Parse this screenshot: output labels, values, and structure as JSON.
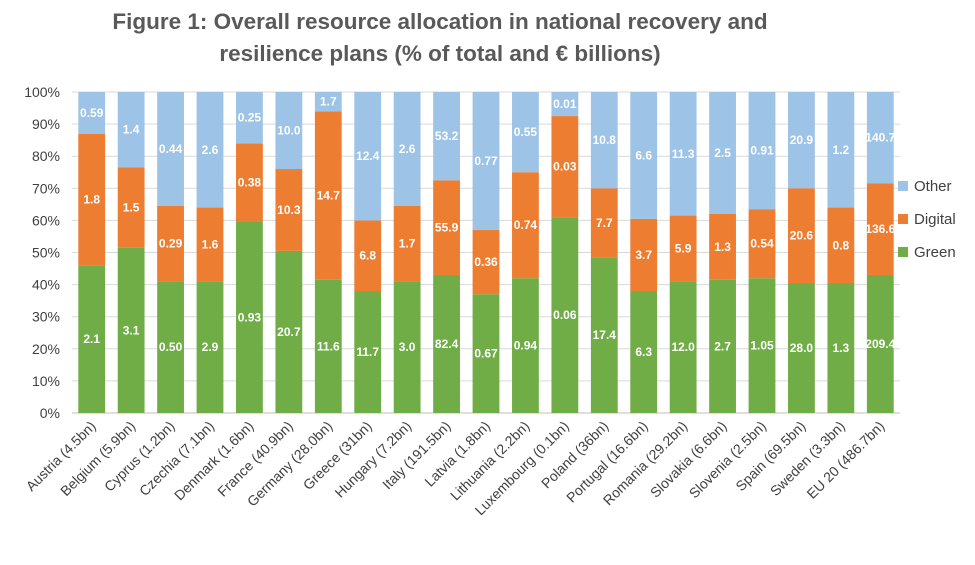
{
  "chart_data": {
    "type": "bar",
    "stacked": true,
    "title_line1": "Figure 1: Overall resource allocation in national recovery and",
    "title_line2": "resilience plans (% of total and € billions)",
    "xlabel": "",
    "ylabel": "",
    "ylim": [
      0,
      100
    ],
    "yticks": [
      "0%",
      "10%",
      "20%",
      "30%",
      "40%",
      "50%",
      "60%",
      "70%",
      "80%",
      "90%",
      "100%"
    ],
    "grid": true,
    "legend_position": "right",
    "categories": [
      "Austria (4.5bn)",
      "Belgium (5.9bn)",
      "Cyprus (1.2bn)",
      "Czechia (7.1bn)",
      "Denmark (1.6bn)",
      "France (40.9bn)",
      "Germany (28.0bn)",
      "Greece (31bn)",
      "Hungary (7.2bn)",
      "Italy (191.5bn)",
      "Latvia (1.8bn)",
      "Lithuania (2.2bn)",
      "Luxembourg (0.1bn)",
      "Poland (36bn)",
      "Portugal (16.6bn)",
      "Romania (29.2bn)",
      "Slovakia (6.6bn)",
      "Slovenia (2.5bn)",
      "Spain (69.5bn)",
      "Sweden (3.3bn)",
      "EU 20 (486.7bn)"
    ],
    "series": [
      {
        "name": "Green",
        "color": "#70AD47",
        "values": [
          46,
          51.5,
          41,
          41,
          59.5,
          50.5,
          41.5,
          38,
          41,
          43,
          37,
          42,
          61,
          48.5,
          38,
          41,
          41.5,
          42,
          40.5,
          40.5,
          43
        ],
        "labels": [
          "2.1",
          "3.1",
          "0.50",
          "2.9",
          "0.93",
          "20.7",
          "11.6",
          "11.7",
          "3.0",
          "82.4",
          "0.67",
          "0.94",
          "0.06",
          "17.4",
          "6.3",
          "12.0",
          "2.7",
          "1.05",
          "28.0",
          "1.3",
          "209.4"
        ]
      },
      {
        "name": "Digital",
        "color": "#ED7D31",
        "values": [
          41,
          25,
          23.5,
          23,
          24.5,
          25.5,
          52.5,
          22,
          23.5,
          29.5,
          20,
          33,
          31.5,
          21.5,
          22.5,
          20.5,
          20.5,
          21.5,
          29.5,
          23.5,
          28.5
        ],
        "labels": [
          "1.8",
          "1.5",
          "0.29",
          "1.6",
          "0.38",
          "10.3",
          "14.7",
          "6.8",
          "1.7",
          "55.9",
          "0.36",
          "0.74",
          "0.03",
          "7.7",
          "3.7",
          "5.9",
          "1.3",
          "0.54",
          "20.6",
          "0.8",
          "136.6"
        ]
      },
      {
        "name": "Other",
        "color": "#9DC3E6",
        "values": [
          13,
          23.5,
          35.5,
          36,
          16,
          24,
          6,
          40,
          35.5,
          27.5,
          43,
          25,
          7.5,
          30,
          39.5,
          38.5,
          38,
          36.5,
          30,
          36,
          28.5
        ],
        "labels": [
          "0.59",
          "1.4",
          "0.44",
          "2.6",
          "0.25",
          "10.0",
          "1.7",
          "12.4",
          "2.6",
          "53.2",
          "0.77",
          "0.55",
          "0.01",
          "10.8",
          "6.6",
          "11.3",
          "2.5",
          "0.91",
          "20.9",
          "1.2",
          "140.7"
        ]
      }
    ],
    "legend": [
      "Other",
      "Digital",
      "Green"
    ]
  }
}
